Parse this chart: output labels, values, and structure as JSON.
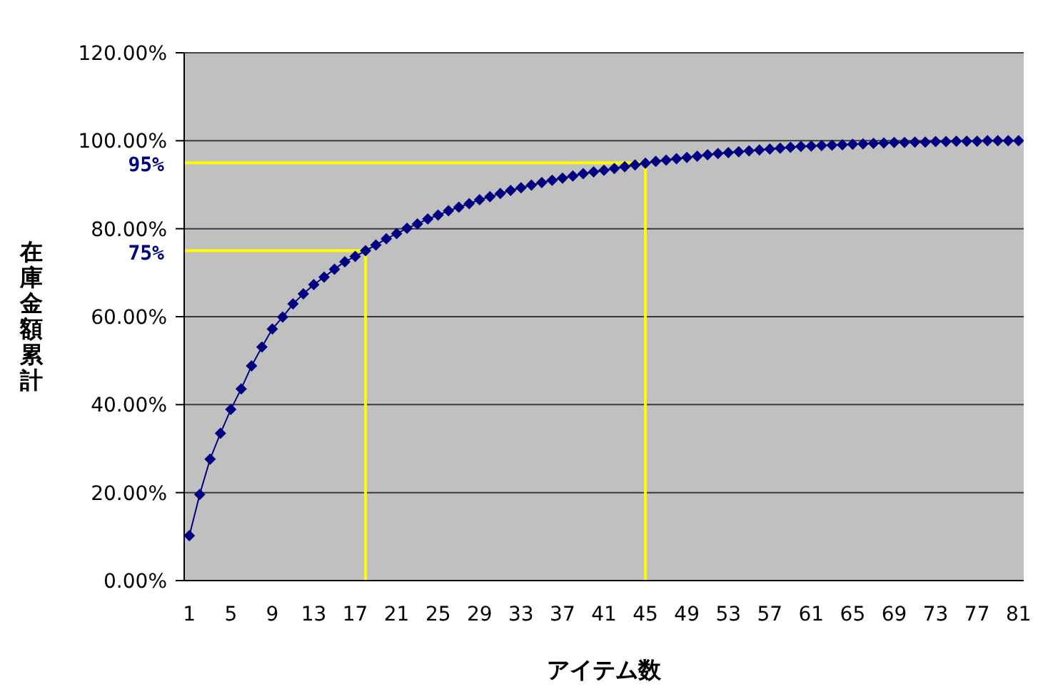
{
  "chart_data": {
    "type": "line",
    "xlabel": "アイテム数",
    "ylabel": "在庫金額累計",
    "x": [
      1,
      2,
      3,
      4,
      5,
      6,
      7,
      8,
      9,
      10,
      11,
      12,
      13,
      14,
      15,
      16,
      17,
      18,
      19,
      20,
      21,
      22,
      23,
      24,
      25,
      26,
      27,
      28,
      29,
      30,
      31,
      32,
      33,
      34,
      35,
      36,
      37,
      38,
      39,
      40,
      41,
      42,
      43,
      44,
      45,
      46,
      47,
      48,
      49,
      50,
      51,
      52,
      53,
      54,
      55,
      56,
      57,
      58,
      59,
      60,
      61,
      62,
      63,
      64,
      65,
      66,
      67,
      68,
      69,
      70,
      71,
      72,
      73,
      74,
      75,
      76,
      77,
      78,
      79,
      80,
      81
    ],
    "series": [
      {
        "color": "#000080",
        "values": [
          10.2,
          19.6,
          27.6,
          33.5,
          38.9,
          43.6,
          48.8,
          53.1,
          57.2,
          59.9,
          62.9,
          65.2,
          67.3,
          69,
          70.8,
          72.5,
          73.7,
          75,
          76.3,
          77.7,
          78.9,
          80.1,
          81.1,
          82.2,
          83.1,
          84.1,
          84.9,
          85.7,
          86.6,
          87.3,
          88,
          88.7,
          89.3,
          89.9,
          90.5,
          91,
          91.5,
          92,
          92.5,
          92.9,
          93.3,
          93.7,
          94.1,
          94.5,
          94.9,
          95.3,
          95.6,
          95.9,
          96.2,
          96.5,
          96.8,
          97.1,
          97.3,
          97.5,
          97.7,
          97.9,
          98.1,
          98.3,
          98.5,
          98.7,
          98.8,
          98.9,
          99,
          99.1,
          99.2,
          99.3,
          99.4,
          99.5,
          99.6,
          99.6,
          99.7,
          99.7,
          99.8,
          99.8,
          99.9,
          99.9,
          99.9,
          100,
          100,
          100,
          100
        ]
      }
    ],
    "xlim": [
      0.5,
      81.5
    ],
    "xticks": [
      1,
      5,
      9,
      13,
      17,
      21,
      25,
      29,
      33,
      37,
      41,
      45,
      49,
      53,
      57,
      61,
      65,
      69,
      73,
      77,
      81
    ],
    "ylim": [
      0,
      120
    ],
    "yticks": [
      {
        "value": 0,
        "label": "0.00%"
      },
      {
        "value": 20,
        "label": "20.00%"
      },
      {
        "value": 40,
        "label": "40.00%"
      },
      {
        "value": 60,
        "label": "60.00%"
      },
      {
        "value": 80,
        "label": "80.00%"
      },
      {
        "value": 100,
        "label": "100.00%"
      },
      {
        "value": 120,
        "label": "120.00%"
      }
    ],
    "ref_lines": [
      {
        "axis": "y",
        "value": 95,
        "label": "95%",
        "color": "#ffff00"
      },
      {
        "axis": "y",
        "value": 75,
        "label": "75%",
        "color": "#ffff00"
      },
      {
        "axis": "x",
        "value": 45,
        "color": "#ffff00"
      },
      {
        "axis": "x",
        "value": 18,
        "color": "#ffff00"
      }
    ],
    "grid": "y",
    "marker": "diamond",
    "line_style": "solid",
    "legend": false
  }
}
